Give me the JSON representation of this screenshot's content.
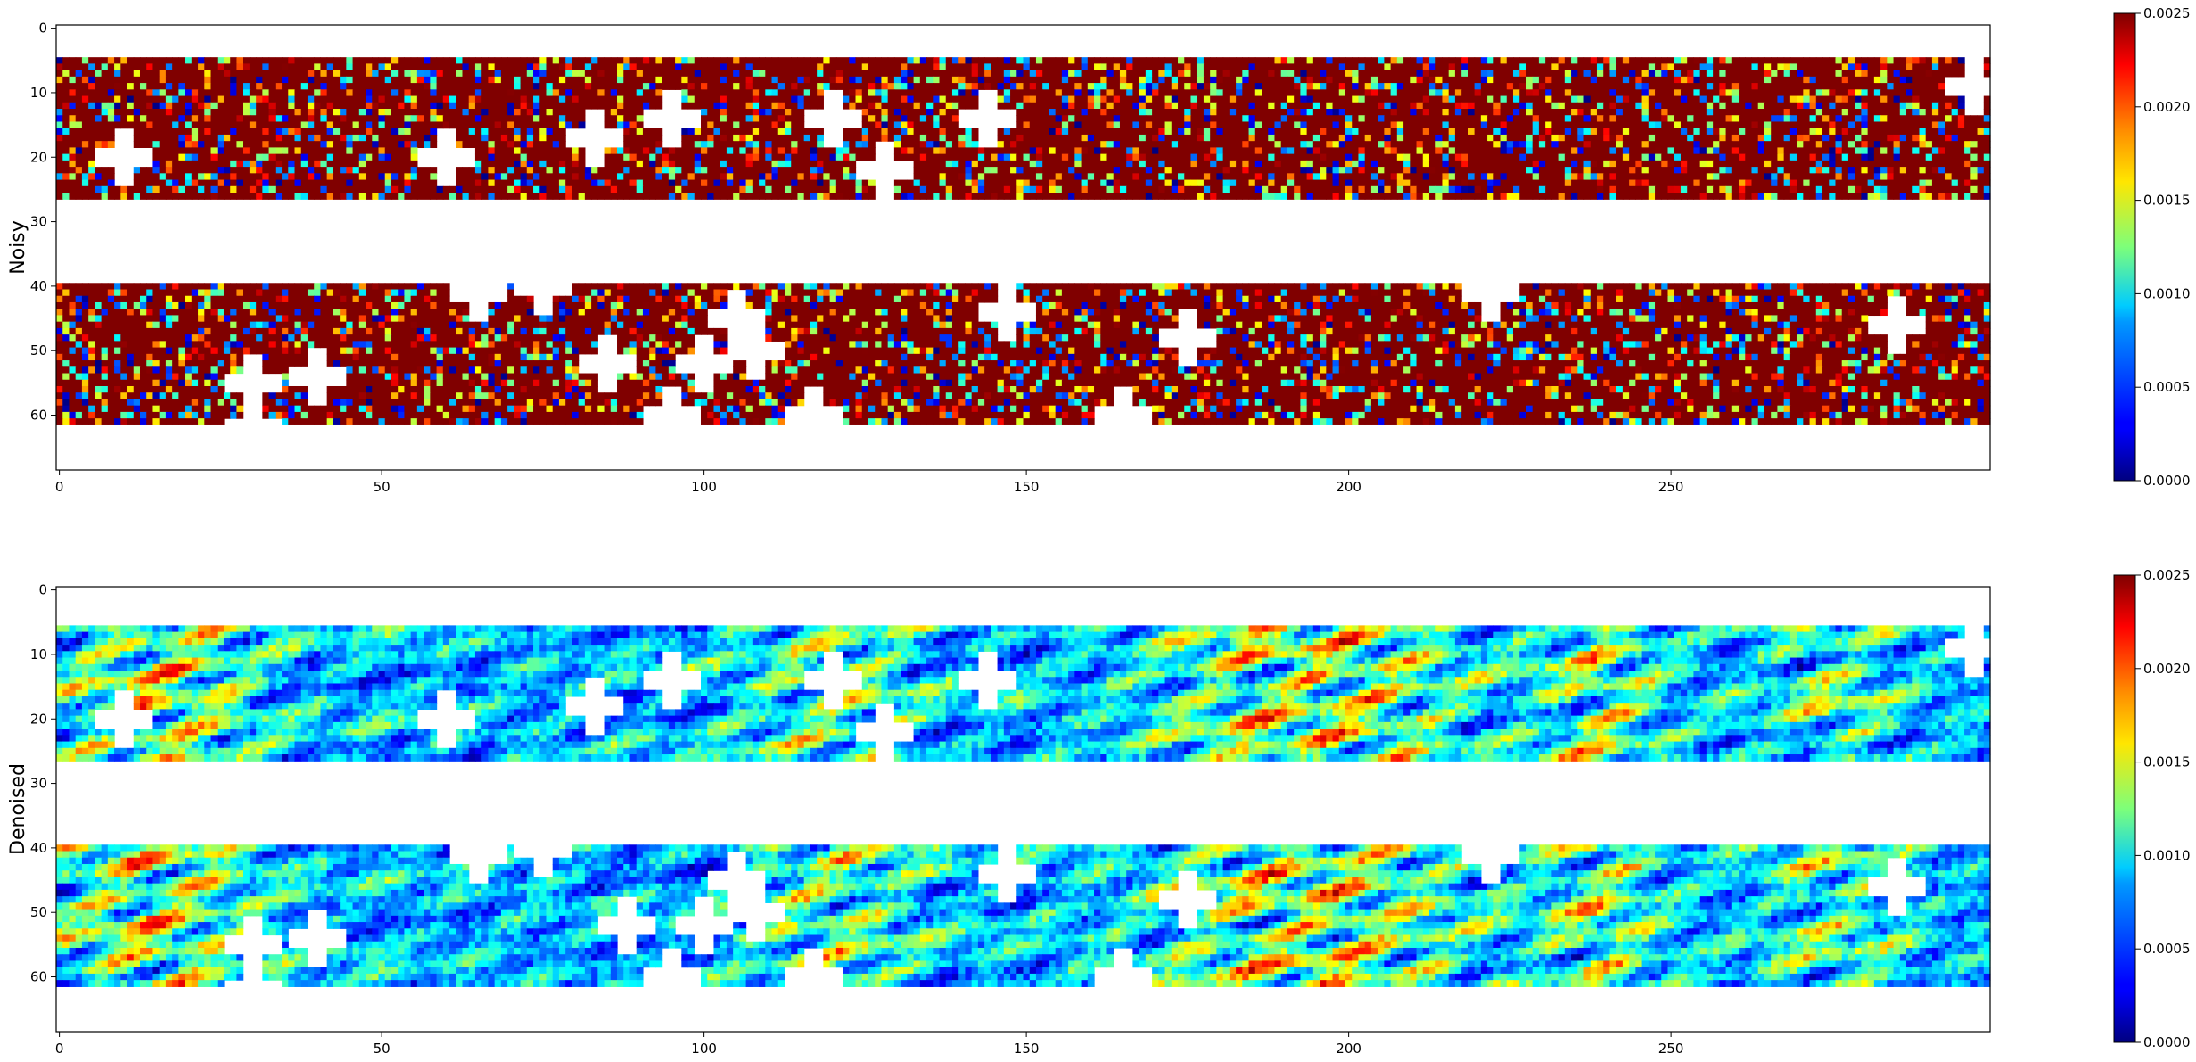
{
  "chart_data": [
    {
      "type": "heatmap",
      "ylabel": "Noisy",
      "xlabel": "",
      "title": "",
      "xlim": [
        -0.5,
        299.5
      ],
      "ylim": [
        68.5,
        -0.5
      ],
      "xticks": [
        0,
        50,
        100,
        150,
        200,
        250
      ],
      "yticks": [
        0,
        10,
        20,
        30,
        40,
        50,
        60
      ],
      "colorscale": "jet",
      "colorbar": {
        "min": 0.0,
        "max": 0.0025,
        "ticks": [
          "0.0000",
          "0.0005",
          "0.0010",
          "0.0015",
          "0.0020",
          "0.0025"
        ]
      },
      "data_rows": [
        [
          5,
          26
        ],
        [
          40,
          61
        ]
      ],
      "data_cols": [
        0,
        299
      ],
      "masked_rows": [
        [
          0,
          4
        ],
        [
          27,
          39
        ],
        [
          62,
          68
        ]
      ],
      "character": "saturated: mostly at max 0.0025 with scattered low-valued noisy pixels",
      "dominant_value": 0.0025,
      "noise_fraction": 0.3
    },
    {
      "type": "heatmap",
      "ylabel": "Denoised",
      "xlabel": "",
      "title": "",
      "xlim": [
        -0.5,
        299.5
      ],
      "ylim": [
        68.5,
        -0.5
      ],
      "xticks": [
        0,
        50,
        100,
        150,
        200,
        250
      ],
      "yticks": [
        0,
        10,
        20,
        30,
        40,
        50,
        60
      ],
      "colorscale": "jet",
      "colorbar": {
        "min": 0.0,
        "max": 0.0025,
        "ticks": [
          "0.0000",
          "0.0005",
          "0.0010",
          "0.0015",
          "0.0020",
          "0.0025"
        ]
      },
      "data_rows": [
        [
          6,
          26
        ],
        [
          40,
          61
        ]
      ],
      "data_cols": [
        0,
        299
      ],
      "masked_rows": [
        [
          0,
          5
        ],
        [
          27,
          39
        ],
        [
          62,
          68
        ]
      ],
      "character": "smoothed: mostly low (0.0002-0.0008) streaky texture with warm patches up to 0.0025",
      "dominant_value": 0.0005,
      "noise_fraction": 0.0
    }
  ]
}
